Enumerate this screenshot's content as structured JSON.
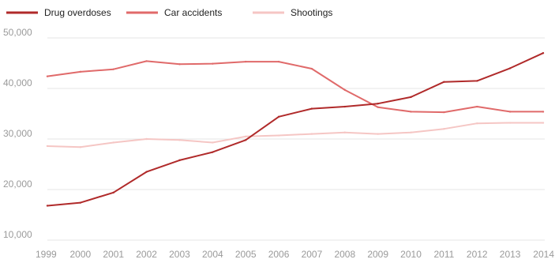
{
  "chart_data": {
    "type": "line",
    "title": "",
    "xlabel": "",
    "ylabel": "",
    "x": [
      1999,
      2000,
      2001,
      2002,
      2003,
      2004,
      2005,
      2006,
      2007,
      2008,
      2009,
      2010,
      2011,
      2012,
      2013,
      2014
    ],
    "x_tick_labels": [
      "1999",
      "2000",
      "2001",
      "2002",
      "2003",
      "2004",
      "2005",
      "2006",
      "2007",
      "2008",
      "2009",
      "2010",
      "2011",
      "2012",
      "2013",
      "2014"
    ],
    "ylim": [
      10000,
      50000
    ],
    "y_ticks": [
      10000,
      20000,
      30000,
      40000,
      50000
    ],
    "y_tick_labels": [
      "10,000",
      "20,000",
      "30,000",
      "40,000",
      "50,000"
    ],
    "grid": true,
    "legend_position": "top-left",
    "series": [
      {
        "name": "Drug overdoses",
        "color": "#b02a2a",
        "values": [
          16800,
          17400,
          19400,
          23500,
          25800,
          27400,
          29800,
          34400,
          36000,
          36400,
          37000,
          38300,
          41300,
          41500,
          44000,
          47000
        ]
      },
      {
        "name": "Car accidents",
        "color": "#e06a6a",
        "values": [
          42400,
          43300,
          43800,
          45400,
          44800,
          44900,
          45300,
          45300,
          43900,
          39700,
          36300,
          35400,
          35300,
          36400,
          35400,
          35400
        ]
      },
      {
        "name": "Shootings",
        "color": "#f5c6c4",
        "values": [
          28600,
          28400,
          29300,
          30000,
          29800,
          29300,
          30500,
          30700,
          31000,
          31300,
          31000,
          31300,
          32000,
          33100,
          33200,
          33200
        ]
      }
    ]
  }
}
